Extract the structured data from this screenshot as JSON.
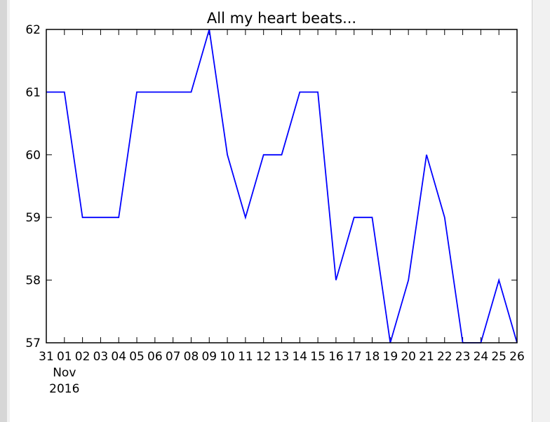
{
  "chart_data": {
    "type": "line",
    "title": "All my heart beats...",
    "xlabel": "",
    "ylabel": "",
    "x": [
      "31",
      "01",
      "02",
      "03",
      "04",
      "05",
      "06",
      "07",
      "08",
      "09",
      "10",
      "11",
      "12",
      "13",
      "14",
      "15",
      "16",
      "17",
      "18",
      "19",
      "20",
      "21",
      "22",
      "23",
      "24",
      "25",
      "26"
    ],
    "x_sublabels": [
      "Nov",
      "2016"
    ],
    "series": [
      {
        "values": [
          61,
          61,
          59,
          59,
          59,
          61,
          61,
          61,
          61,
          62,
          60,
          59,
          60,
          60,
          61,
          61,
          58,
          59,
          59,
          57,
          58,
          60,
          59,
          57,
          57,
          58,
          57
        ]
      }
    ],
    "ylim": [
      57,
      62
    ],
    "yticks": [
      "57",
      "58",
      "59",
      "60",
      "61",
      "62"
    ],
    "grid": false,
    "line_color": "#0000ff"
  }
}
